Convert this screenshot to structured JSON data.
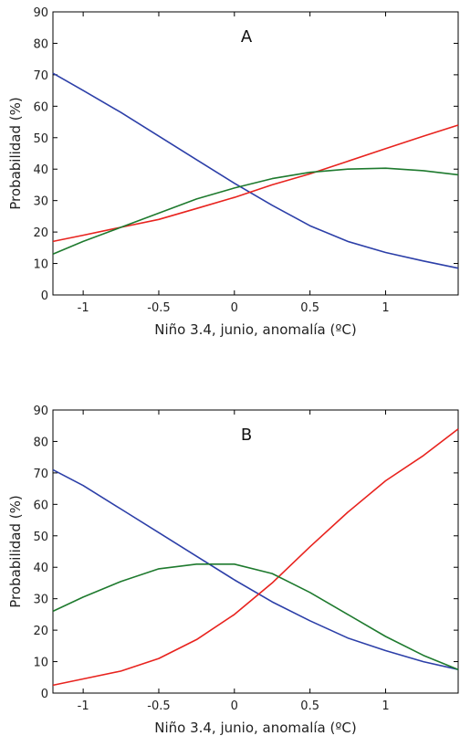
{
  "chart_data": [
    {
      "type": "line",
      "panel_label": "A",
      "title": "",
      "xlabel": "Niño 3.4, junio, anomalía (ºC)",
      "ylabel": "Probabilidad (%)",
      "xlim": [
        -1.2,
        1.48
      ],
      "ylim": [
        0,
        90
      ],
      "xticks": [
        -1,
        -0.5,
        0,
        0.5,
        1
      ],
      "xtick_labels": [
        "-1",
        "-0.5",
        "0",
        "0.5",
        "1"
      ],
      "yticks": [
        0,
        10,
        20,
        30,
        40,
        50,
        60,
        70,
        80,
        90
      ],
      "ytick_labels": [
        "0",
        "10",
        "20",
        "30",
        "40",
        "50",
        "60",
        "70",
        "80",
        "90"
      ],
      "grid": false,
      "legend": "none",
      "series": [
        {
          "color": "#2c3fa8",
          "x": [
            -1.2,
            -1.0,
            -0.75,
            -0.5,
            -0.25,
            0.0,
            0.25,
            0.5,
            0.75,
            1.0,
            1.25,
            1.48
          ],
          "y": [
            70.5,
            65.0,
            58.0,
            50.5,
            43.0,
            35.5,
            28.5,
            22.0,
            17.0,
            13.5,
            10.8,
            8.5
          ]
        },
        {
          "color": "#e8231e",
          "x": [
            -1.2,
            -1.0,
            -0.75,
            -0.5,
            -0.25,
            0.0,
            0.25,
            0.5,
            0.75,
            1.0,
            1.25,
            1.48
          ],
          "y": [
            17.0,
            19.0,
            21.5,
            24.0,
            27.5,
            31.0,
            35.0,
            38.5,
            42.5,
            46.5,
            50.5,
            54.0
          ]
        },
        {
          "color": "#1e7a2e",
          "x": [
            -1.2,
            -1.0,
            -0.75,
            -0.5,
            -0.25,
            0.0,
            0.25,
            0.5,
            0.75,
            1.0,
            1.25,
            1.48
          ],
          "y": [
            13.0,
            17.0,
            21.5,
            26.0,
            30.5,
            34.0,
            37.0,
            39.0,
            40.0,
            40.3,
            39.5,
            38.2
          ]
        }
      ]
    },
    {
      "type": "line",
      "panel_label": "B",
      "title": "",
      "xlabel": "Niño 3.4, junio, anomalía (ºC)",
      "ylabel": "Probabilidad (%)",
      "xlim": [
        -1.2,
        1.48
      ],
      "ylim": [
        0,
        90
      ],
      "xticks": [
        -1,
        -0.5,
        0,
        0.5,
        1
      ],
      "xtick_labels": [
        "-1",
        "-0.5",
        "0",
        "0.5",
        "1"
      ],
      "yticks": [
        0,
        10,
        20,
        30,
        40,
        50,
        60,
        70,
        80,
        90
      ],
      "ytick_labels": [
        "0",
        "10",
        "20",
        "30",
        "40",
        "50",
        "60",
        "70",
        "80",
        "90"
      ],
      "grid": false,
      "legend": "none",
      "series": [
        {
          "color": "#2c3fa8",
          "x": [
            -1.2,
            -1.0,
            -0.75,
            -0.5,
            -0.25,
            0.0,
            0.25,
            0.5,
            0.75,
            1.0,
            1.25,
            1.48
          ],
          "y": [
            71.0,
            66.0,
            58.5,
            51.0,
            43.5,
            36.0,
            29.0,
            23.0,
            17.5,
            13.5,
            10.0,
            7.5
          ]
        },
        {
          "color": "#e8231e",
          "x": [
            -1.2,
            -1.0,
            -0.75,
            -0.5,
            -0.25,
            0.0,
            0.25,
            0.5,
            0.75,
            1.0,
            1.25,
            1.48
          ],
          "y": [
            2.5,
            4.5,
            7.0,
            11.0,
            17.0,
            25.0,
            35.0,
            46.5,
            57.5,
            67.5,
            75.5,
            84.0
          ]
        },
        {
          "color": "#1e7a2e",
          "x": [
            -1.2,
            -1.0,
            -0.75,
            -0.5,
            -0.25,
            0.0,
            0.25,
            0.5,
            0.75,
            1.0,
            1.25,
            1.48
          ],
          "y": [
            26.0,
            30.5,
            35.5,
            39.5,
            41.0,
            41.0,
            38.0,
            32.0,
            25.0,
            18.0,
            12.0,
            7.5
          ]
        }
      ]
    }
  ]
}
